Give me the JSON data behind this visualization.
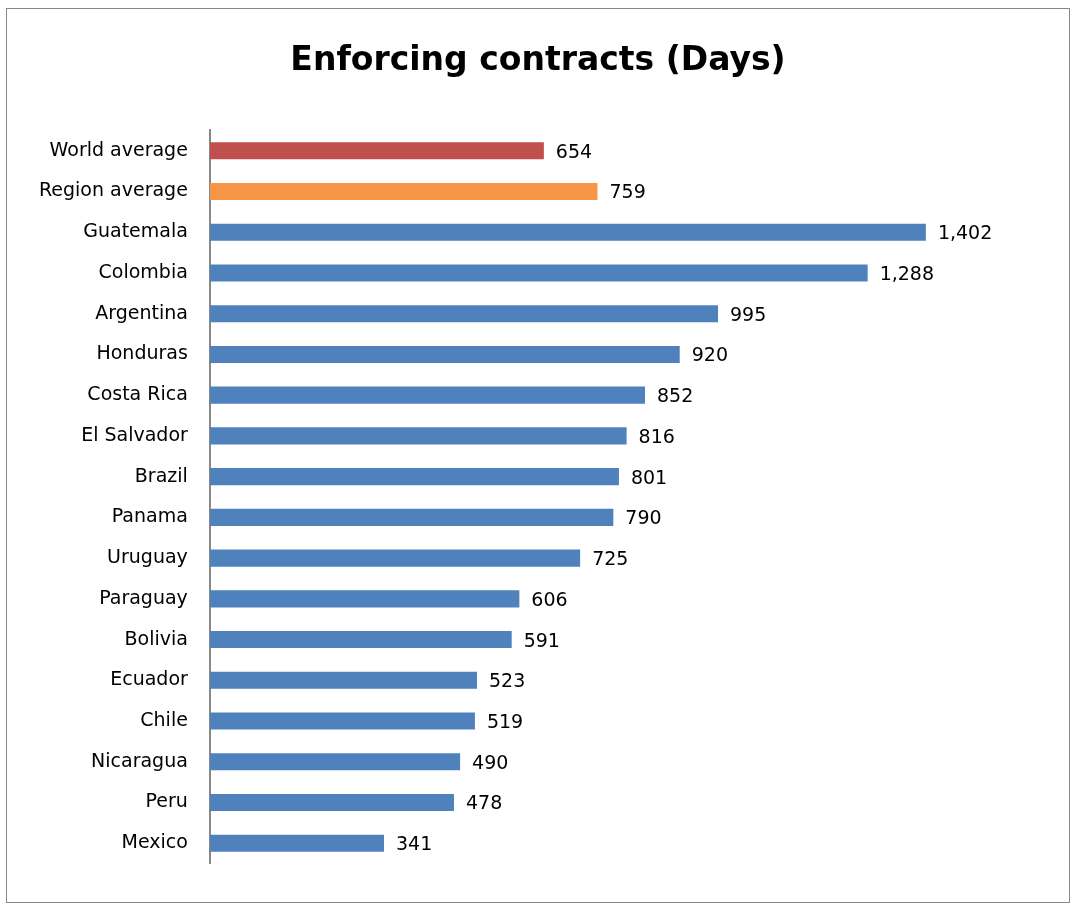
{
  "chart_data": {
    "type": "bar",
    "orientation": "horizontal",
    "title": "Enforcing contracts (Days)",
    "categories": [
      "World average",
      "Region average",
      "Guatemala",
      "Colombia",
      "Argentina",
      "Honduras",
      "Costa Rica",
      "El Salvador",
      "Brazil",
      "Panama",
      "Uruguay",
      "Paraguay",
      "Bolivia",
      "Ecuador",
      "Chile",
      "Nicaragua",
      "Peru",
      "Mexico"
    ],
    "values": [
      654,
      759,
      1402,
      1288,
      995,
      920,
      852,
      816,
      801,
      790,
      725,
      606,
      591,
      523,
      519,
      490,
      478,
      341
    ],
    "colors": [
      "#c0504d",
      "#f79646",
      "#4f81bd",
      "#4f81bd",
      "#4f81bd",
      "#4f81bd",
      "#4f81bd",
      "#4f81bd",
      "#4f81bd",
      "#4f81bd",
      "#4f81bd",
      "#4f81bd",
      "#4f81bd",
      "#4f81bd",
      "#4f81bd",
      "#4f81bd",
      "#4f81bd",
      "#4f81bd"
    ],
    "value_labels": [
      "654",
      "759",
      "1,402",
      "1,288",
      "995",
      "920",
      "852",
      "816",
      "801",
      "790",
      "725",
      "606",
      "591",
      "523",
      "519",
      "490",
      "478",
      "341"
    ],
    "legend": false
  }
}
